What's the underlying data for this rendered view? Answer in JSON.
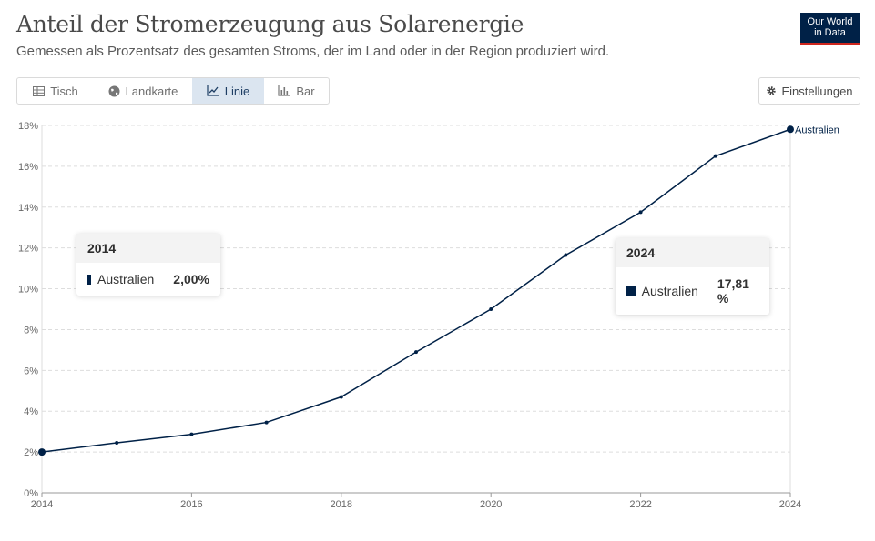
{
  "header": {
    "title": "Anteil der Stromerzeugung aus Solarenergie",
    "subtitle": "Gemessen als Prozentsatz des gesamten Stroms, der im Land oder in der Region produziert wird.",
    "logo_line1": "Our World",
    "logo_line2": "in Data"
  },
  "tabs": [
    {
      "label": "Tisch",
      "icon": "table-icon"
    },
    {
      "label": "Landkarte",
      "icon": "globe-icon"
    },
    {
      "label": "Linie",
      "icon": "line-chart-icon"
    },
    {
      "label": "Bar",
      "icon": "bar-chart-icon"
    }
  ],
  "settings_label": "Einstellungen",
  "colors": {
    "series": "#002147",
    "grid": "#dddddd",
    "axis": "#666666",
    "active_tab": "#dbe5f0"
  },
  "tooltips": [
    {
      "year": "2014",
      "entity": "Australien",
      "value": "2,00%"
    },
    {
      "year": "2024",
      "entity": "Australien",
      "value": "17,81 %"
    }
  ],
  "chart_data": {
    "type": "line",
    "title": "Anteil der Stromerzeugung aus Solarenergie",
    "xlabel": "",
    "ylabel": "",
    "x": [
      2014,
      2015,
      2016,
      2017,
      2018,
      2019,
      2020,
      2021,
      2022,
      2023,
      2024
    ],
    "series": [
      {
        "name": "Australien",
        "values": [
          2.0,
          2.45,
          2.87,
          3.45,
          4.7,
          6.9,
          9.0,
          11.65,
          13.75,
          16.5,
          17.81
        ]
      }
    ],
    "ylim": [
      0,
      18
    ],
    "yticks": [
      "0%",
      "2%",
      "4%",
      "6%",
      "8%",
      "10%",
      "12%",
      "14%",
      "16%",
      "18%"
    ],
    "xticks": [
      "2014",
      "2016",
      "2018",
      "2020",
      "2022",
      "2024"
    ],
    "grid": true,
    "end_label": "Australien"
  }
}
